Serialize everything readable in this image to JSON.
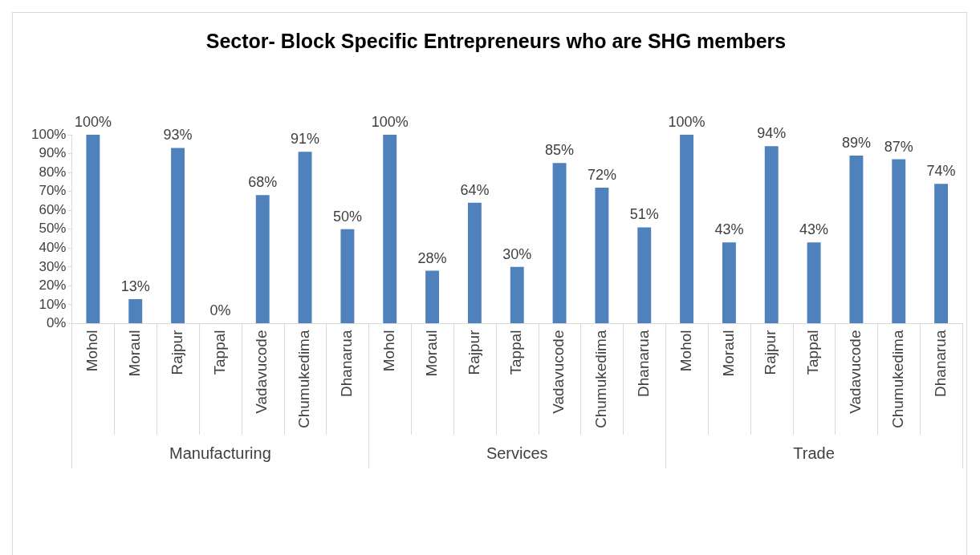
{
  "chart_data": {
    "type": "bar",
    "title": "Sector- Block Specific Entrepreneurs who are SHG members",
    "categories": [
      "Mohol",
      "Moraul",
      "Rajpur",
      "Tappal",
      "Vadavucode",
      "Chumukedima",
      "Dhanarua",
      "Mohol",
      "Moraul",
      "Rajpur",
      "Tappal",
      "Vadavucode",
      "Chumukedima",
      "Dhanarua",
      "Mohol",
      "Moraul",
      "Rajpur",
      "Tappal",
      "Vadavucode",
      "Chumukedima",
      "Dhanarua"
    ],
    "values": [
      100,
      13,
      93,
      0,
      68,
      91,
      50,
      100,
      28,
      64,
      30,
      85,
      72,
      51,
      100,
      43,
      94,
      43,
      89,
      87,
      74
    ],
    "value_labels": [
      "100%",
      "13%",
      "93%",
      "0%",
      "68%",
      "91%",
      "50%",
      "100%",
      "28%",
      "64%",
      "30%",
      "85%",
      "72%",
      "51%",
      "100%",
      "43%",
      "94%",
      "43%",
      "89%",
      "87%",
      "74%"
    ],
    "color": "#4f81bd",
    "annotations": [
      "Manufacturing",
      "Services",
      "Trade"
    ],
    "ylim": [
      0,
      100
    ],
    "yticks": [
      {
        "value": 0,
        "label": "0%"
      },
      {
        "value": 10,
        "label": "10%"
      },
      {
        "value": 20,
        "label": "20%"
      },
      {
        "value": 30,
        "label": "30%"
      },
      {
        "value": 40,
        "label": "40%"
      },
      {
        "value": 50,
        "label": "50%"
      },
      {
        "value": 60,
        "label": "60%"
      },
      {
        "value": 70,
        "label": "70%"
      },
      {
        "value": 80,
        "label": "80%"
      },
      {
        "value": 90,
        "label": "90%"
      },
      {
        "value": 100,
        "label": "100%"
      }
    ],
    "grid": false,
    "legend": false
  }
}
